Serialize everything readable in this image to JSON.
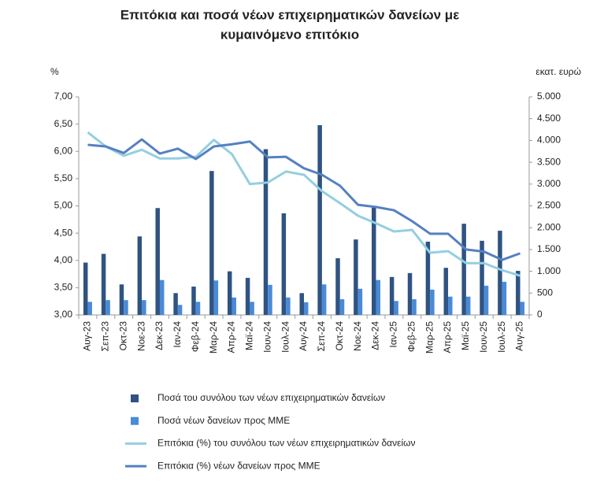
{
  "chart_data": {
    "type": "bar-line",
    "title": [
      "Επιτόκια και ποσά νέων επιχειρηματικών δανείων με",
      "κυμαινόμενο επιτόκιο"
    ],
    "y_label": "%",
    "y2_label": "εκατ. ευρώ",
    "categories": [
      "Αυγ-23",
      "Σεπ-23",
      "Οκτ-23",
      "Νοε-23",
      "Δεκ-23",
      "Ιαν-24",
      "Φεβ-24",
      "Μαρ-24",
      "Απρ-24",
      "Μαϊ-24",
      "Ιουν-24",
      "Ιουλ-24",
      "Αυγ-24",
      "Σεπ-24",
      "Οκτ-24",
      "Νοε-24",
      "Δεκ-24",
      "Ιαν-25",
      "Φεβ-25",
      "Μαρ-25",
      "Απρ-25",
      "Μαϊ-25",
      "Ιουν-25",
      "Ιουλ-25",
      "Αυγ-25"
    ],
    "ylim": [
      3,
      7
    ],
    "yticks": [
      {
        "value": 3,
        "label": "3,00"
      },
      {
        "value": 3.5,
        "label": "3,50"
      },
      {
        "value": 4,
        "label": "4,00"
      },
      {
        "value": 4.5,
        "label": "4,50"
      },
      {
        "value": 5,
        "label": "5,00"
      },
      {
        "value": 5.5,
        "label": "5,50"
      },
      {
        "value": 6,
        "label": "6,00"
      },
      {
        "value": 6.5,
        "label": "6,50"
      },
      {
        "value": 7,
        "label": "7,00"
      }
    ],
    "y2lim": [
      0,
      5000
    ],
    "y2ticks": [
      0,
      500,
      {
        "value": 1000,
        "label": "1.000"
      },
      {
        "value": 1500,
        "label": "1.500"
      },
      {
        "value": 2000,
        "label": "2.000"
      },
      {
        "value": 2500,
        "label": "2.500"
      },
      {
        "value": 3000,
        "label": "3.000"
      },
      {
        "value": 3500,
        "label": "3.500"
      },
      {
        "value": 4000,
        "label": "4.000"
      },
      {
        "value": 4500,
        "label": "4.500"
      },
      {
        "value": 5000,
        "label": "5.000"
      }
    ],
    "grid": false,
    "series": [
      {
        "name": "Ποσά του συνόλου των νέων επιχειρηματικών δανείων",
        "type": "bar",
        "axis": "y2",
        "color": "#2f5382",
        "values": [
          1200,
          1400,
          700,
          1800,
          2450,
          500,
          650,
          3300,
          1000,
          850,
          3800,
          2330,
          500,
          4350,
          1300,
          1730,
          2470,
          870,
          960,
          1680,
          1080,
          2090,
          1700,
          1930,
          1010
        ]
      },
      {
        "name": "Ποσά νέων δανείων προς ΜΜΕ",
        "type": "bar",
        "axis": "y2",
        "color": "#4a8ad6",
        "values": [
          300,
          340,
          340,
          340,
          800,
          230,
          300,
          790,
          400,
          300,
          690,
          400,
          290,
          700,
          360,
          600,
          800,
          320,
          360,
          580,
          420,
          420,
          670,
          760,
          300
        ]
      },
      {
        "name": "Επιτόκια (%) του συνόλου των νέων επιχειρηματικών δανείων",
        "type": "line",
        "color": "#93cfe0",
        "values": [
          6.35,
          6.09,
          5.92,
          6.03,
          5.87,
          5.87,
          5.9,
          6.21,
          5.95,
          5.4,
          5.43,
          5.63,
          5.57,
          5.27,
          5.05,
          4.82,
          4.68,
          4.53,
          4.56,
          4.14,
          4.17,
          3.95,
          3.95,
          3.82,
          3.72
        ]
      },
      {
        "name": "Επιτόκια (%) νέων δανείων προς ΜΜΕ",
        "type": "line",
        "color": "#5580c2",
        "values": [
          6.12,
          6.09,
          5.97,
          6.22,
          5.96,
          6.05,
          5.86,
          6.09,
          6.13,
          6.18,
          5.89,
          5.9,
          5.69,
          5.57,
          5.37,
          5.02,
          4.98,
          4.92,
          4.72,
          4.49,
          4.49,
          4.2,
          4.16,
          4.01,
          4.13
        ]
      }
    ]
  }
}
